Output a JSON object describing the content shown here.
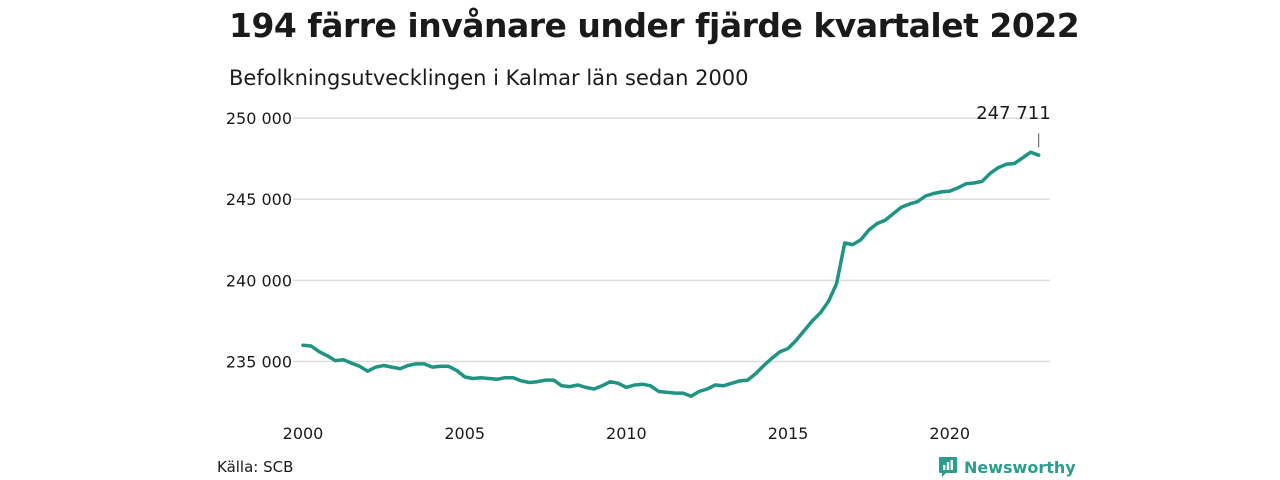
{
  "header": {
    "title": "194 färre invånare under fjärde kvartalet 2022",
    "subtitle": "Befolkningsutvecklingen i Kalmar län sedan 2000"
  },
  "footer": {
    "source": "Källa: SCB",
    "brand": "Newsworthy",
    "brand_icon": "chart-bubble-icon"
  },
  "colors": {
    "line": "#1f9483",
    "grid": "#dddddd",
    "brand": "#2a9d8f"
  },
  "chart_data": {
    "type": "line",
    "title": "194 färre invånare under fjärde kvartalet 2022",
    "subtitle": "Befolkningsutvecklingen i Kalmar län sedan 2000",
    "xlim": [
      2000,
      2023.1
    ],
    "ylim": [
      232500,
      250500
    ],
    "y_ticks": [
      235000,
      240000,
      245000,
      250000
    ],
    "y_tick_labels": [
      "235 000",
      "240 000",
      "245 000",
      "250 000"
    ],
    "x_ticks": [
      2000,
      2005,
      2010,
      2015,
      2020
    ],
    "x_tick_labels": [
      "2000",
      "2005",
      "2010",
      "2015",
      "2020"
    ],
    "grid": "horizontal",
    "annotation": {
      "label": "247 711",
      "x": 2022.75,
      "y": 247711
    },
    "series": [
      {
        "x": [
          2000,
          2000.25,
          2000.5,
          2000.75,
          2001,
          2001.25,
          2001.5,
          2001.75,
          2002,
          2002.25,
          2002.5,
          2002.75,
          2003,
          2003.25,
          2003.5,
          2003.75,
          2004,
          2004.25,
          2004.5,
          2004.75,
          2005,
          2005.25,
          2005.5,
          2005.75,
          2006,
          2006.25,
          2006.5,
          2006.75,
          2007,
          2007.25,
          2007.5,
          2007.75,
          2008,
          2008.25,
          2008.5,
          2008.75,
          2009,
          2009.25,
          2009.5,
          2009.75,
          2010,
          2010.25,
          2010.5,
          2010.75,
          2011,
          2011.25,
          2011.5,
          2011.75,
          2012,
          2012.25,
          2012.5,
          2012.75,
          2013,
          2013.25,
          2013.5,
          2013.75,
          2014,
          2014.25,
          2014.5,
          2014.75,
          2015,
          2015.25,
          2015.5,
          2015.75,
          2016,
          2016.25,
          2016.5,
          2016.75,
          2017,
          2017.25,
          2017.5,
          2017.75,
          2018,
          2018.25,
          2018.5,
          2018.75,
          2019,
          2019.25,
          2019.5,
          2019.75,
          2020,
          2020.25,
          2020.5,
          2020.75,
          2021,
          2021.25,
          2021.5,
          2021.75,
          2022,
          2022.25,
          2022.5,
          2022.75
        ],
        "values": [
          236000,
          235950,
          235600,
          235350,
          235050,
          235100,
          234900,
          234700,
          234400,
          234650,
          234750,
          234650,
          234550,
          234750,
          234850,
          234850,
          234650,
          234700,
          234700,
          234450,
          234050,
          233950,
          234000,
          233950,
          233900,
          234000,
          234000,
          233800,
          233700,
          233750,
          233850,
          233850,
          233500,
          233450,
          233550,
          233400,
          233300,
          233500,
          233750,
          233650,
          233400,
          233550,
          233600,
          233500,
          233150,
          233100,
          233050,
          233050,
          232850,
          233150,
          233300,
          233550,
          233500,
          233650,
          233800,
          233850,
          234250,
          234750,
          235200,
          235600,
          235800,
          236300,
          236900,
          237500,
          238000,
          238700,
          239800,
          242300,
          242200,
          242500,
          243100,
          243500,
          243700,
          244100,
          244500,
          244700,
          244850,
          245200,
          245350,
          245450,
          245500,
          245700,
          245950,
          246000,
          246100,
          246600,
          246950,
          247150,
          247200,
          247550,
          247900,
          247711
        ]
      }
    ]
  }
}
